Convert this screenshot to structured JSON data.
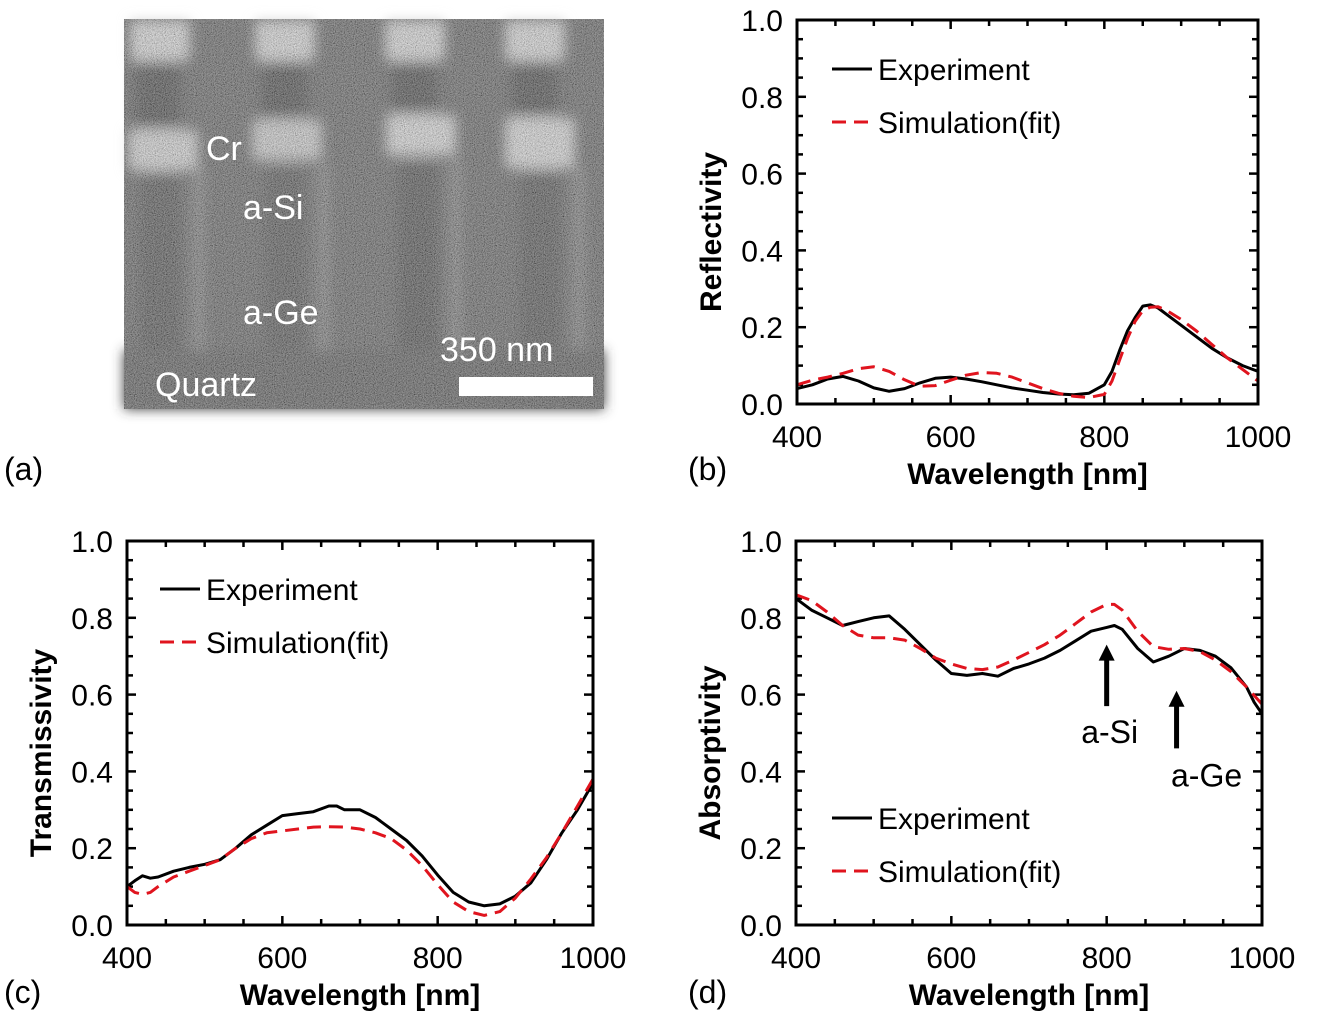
{
  "figure": {
    "panel_labels": [
      "(a)",
      "(b)",
      "(c)",
      "(d)"
    ],
    "sem_image": {
      "labels": [
        "Cr",
        "a-Si",
        "a-Ge",
        "Quartz"
      ],
      "scale_bar_label": "350 nm",
      "colors": {
        "background": "#4a4a4a",
        "text": "#ffffff"
      }
    },
    "colors": {
      "experiment": "#000000",
      "simulation": "#e0141e"
    }
  },
  "chart_data": [
    {
      "id": "b",
      "type": "line",
      "title": "",
      "xlabel": "Wavelength [nm]",
      "ylabel": "Reflectivity",
      "xlim": [
        400,
        1000
      ],
      "ylim": [
        0.0,
        1.0
      ],
      "xticks": [
        400,
        600,
        800,
        1000
      ],
      "xtick_labels": [
        "400",
        "600",
        "800",
        "1000"
      ],
      "yticks": [
        0.0,
        0.2,
        0.4,
        0.6,
        0.8,
        1.0
      ],
      "ytick_labels": [
        "0.0",
        "0.2",
        "0.4",
        "0.6",
        "0.8",
        "1.0"
      ],
      "grid": false,
      "legend": {
        "position": "top-left",
        "entries": [
          "Experiment",
          "Simulation(fit)"
        ]
      },
      "series": [
        {
          "name": "Experiment",
          "style": "solid",
          "x": [
            400,
            420,
            440,
            460,
            480,
            500,
            520,
            540,
            560,
            580,
            600,
            620,
            640,
            660,
            680,
            700,
            720,
            740,
            760,
            780,
            800,
            810,
            820,
            830,
            840,
            850,
            860,
            870,
            880,
            900,
            920,
            940,
            960,
            980,
            1000
          ],
          "y": [
            0.04,
            0.05,
            0.065,
            0.072,
            0.06,
            0.042,
            0.033,
            0.04,
            0.055,
            0.067,
            0.07,
            0.065,
            0.058,
            0.05,
            0.042,
            0.036,
            0.03,
            0.026,
            0.024,
            0.028,
            0.05,
            0.085,
            0.14,
            0.19,
            0.225,
            0.255,
            0.258,
            0.25,
            0.235,
            0.205,
            0.175,
            0.145,
            0.12,
            0.1,
            0.085
          ]
        },
        {
          "name": "Simulation(fit)",
          "style": "dashed",
          "x": [
            400,
            420,
            440,
            460,
            480,
            500,
            520,
            540,
            560,
            580,
            600,
            620,
            640,
            660,
            680,
            700,
            720,
            740,
            760,
            780,
            800,
            810,
            820,
            830,
            840,
            850,
            860,
            870,
            880,
            900,
            920,
            940,
            960,
            980,
            1000
          ],
          "y": [
            0.05,
            0.062,
            0.07,
            0.08,
            0.092,
            0.097,
            0.085,
            0.063,
            0.046,
            0.048,
            0.062,
            0.075,
            0.082,
            0.08,
            0.07,
            0.055,
            0.04,
            0.028,
            0.02,
            0.017,
            0.025,
            0.06,
            0.115,
            0.17,
            0.215,
            0.243,
            0.252,
            0.253,
            0.245,
            0.22,
            0.19,
            0.155,
            0.12,
            0.09,
            0.06
          ]
        }
      ]
    },
    {
      "id": "c",
      "type": "line",
      "title": "",
      "xlabel": "Wavelength [nm]",
      "ylabel": "Transmissivity",
      "xlim": [
        400,
        1000
      ],
      "ylim": [
        0.0,
        1.0
      ],
      "xticks": [
        400,
        600,
        800,
        1000
      ],
      "xtick_labels": [
        "400",
        "600",
        "800",
        "1000"
      ],
      "yticks": [
        0.0,
        0.2,
        0.4,
        0.6,
        0.8,
        1.0
      ],
      "ytick_labels": [
        "0.0",
        "0.2",
        "0.4",
        "0.6",
        "0.8",
        "1.0"
      ],
      "grid": false,
      "legend": {
        "position": "top-left",
        "entries": [
          "Experiment",
          "Simulation(fit)"
        ]
      },
      "series": [
        {
          "name": "Experiment",
          "style": "solid",
          "x": [
            400,
            410,
            420,
            430,
            440,
            460,
            480,
            500,
            520,
            540,
            560,
            580,
            600,
            620,
            640,
            660,
            670,
            680,
            700,
            720,
            740,
            760,
            780,
            800,
            820,
            840,
            860,
            880,
            900,
            920,
            940,
            960,
            980,
            1000
          ],
          "y": [
            0.1,
            0.115,
            0.128,
            0.122,
            0.125,
            0.14,
            0.15,
            0.158,
            0.17,
            0.2,
            0.235,
            0.26,
            0.285,
            0.29,
            0.295,
            0.31,
            0.31,
            0.3,
            0.3,
            0.28,
            0.25,
            0.22,
            0.18,
            0.13,
            0.085,
            0.06,
            0.05,
            0.055,
            0.075,
            0.11,
            0.17,
            0.24,
            0.3,
            0.37
          ]
        },
        {
          "name": "Simulation(fit)",
          "style": "dashed",
          "x": [
            400,
            410,
            420,
            430,
            440,
            460,
            480,
            500,
            520,
            540,
            560,
            580,
            600,
            620,
            640,
            660,
            680,
            700,
            720,
            740,
            760,
            780,
            800,
            820,
            840,
            860,
            880,
            900,
            920,
            940,
            960,
            980,
            1000
          ],
          "y": [
            0.1,
            0.085,
            0.08,
            0.085,
            0.1,
            0.125,
            0.14,
            0.155,
            0.17,
            0.2,
            0.225,
            0.24,
            0.245,
            0.25,
            0.255,
            0.256,
            0.255,
            0.25,
            0.24,
            0.225,
            0.195,
            0.155,
            0.105,
            0.06,
            0.035,
            0.025,
            0.035,
            0.07,
            0.12,
            0.175,
            0.24,
            0.31,
            0.38
          ]
        }
      ]
    },
    {
      "id": "d",
      "type": "line",
      "title": "",
      "xlabel": "Wavelength [nm]",
      "ylabel": "Absorptivity",
      "xlim": [
        400,
        1000
      ],
      "ylim": [
        0.0,
        1.0
      ],
      "xticks": [
        400,
        600,
        800,
        1000
      ],
      "xtick_labels": [
        "400",
        "600",
        "800",
        "1000"
      ],
      "yticks": [
        0.0,
        0.2,
        0.4,
        0.6,
        0.8,
        1.0
      ],
      "ytick_labels": [
        "0.0",
        "0.2",
        "0.4",
        "0.6",
        "0.8",
        "1.0"
      ],
      "grid": false,
      "legend": {
        "position": "bottom-left",
        "entries": [
          "Experiment",
          "Simulation(fit)"
        ]
      },
      "annotations": [
        {
          "text": "a-Si",
          "arrow_x": 800,
          "arrow_y_from": 0.57,
          "arrow_y_to": 0.73
        },
        {
          "text": "a-Ge",
          "arrow_x": 890,
          "arrow_y_from": 0.46,
          "arrow_y_to": 0.61
        }
      ],
      "series": [
        {
          "name": "Experiment",
          "style": "solid",
          "x": [
            400,
            420,
            440,
            460,
            480,
            500,
            520,
            540,
            560,
            580,
            600,
            620,
            640,
            660,
            680,
            700,
            720,
            740,
            760,
            780,
            800,
            810,
            820,
            840,
            860,
            880,
            900,
            920,
            940,
            960,
            980,
            990,
            1000
          ],
          "y": [
            0.85,
            0.82,
            0.8,
            0.78,
            0.79,
            0.8,
            0.805,
            0.77,
            0.73,
            0.69,
            0.655,
            0.65,
            0.655,
            0.648,
            0.668,
            0.68,
            0.695,
            0.715,
            0.74,
            0.765,
            0.775,
            0.78,
            0.77,
            0.72,
            0.685,
            0.7,
            0.72,
            0.715,
            0.7,
            0.67,
            0.62,
            0.58,
            0.55
          ]
        },
        {
          "name": "Simulation(fit)",
          "style": "dashed",
          "x": [
            400,
            420,
            440,
            460,
            480,
            500,
            520,
            540,
            560,
            580,
            600,
            620,
            640,
            660,
            680,
            700,
            720,
            740,
            760,
            780,
            800,
            810,
            820,
            840,
            860,
            880,
            900,
            920,
            940,
            960,
            980,
            1000
          ],
          "y": [
            0.86,
            0.845,
            0.815,
            0.78,
            0.755,
            0.748,
            0.748,
            0.742,
            0.72,
            0.695,
            0.68,
            0.668,
            0.665,
            0.672,
            0.69,
            0.71,
            0.73,
            0.755,
            0.785,
            0.815,
            0.835,
            0.835,
            0.82,
            0.765,
            0.725,
            0.718,
            0.72,
            0.712,
            0.69,
            0.66,
            0.62,
            0.575
          ]
        }
      ]
    }
  ]
}
